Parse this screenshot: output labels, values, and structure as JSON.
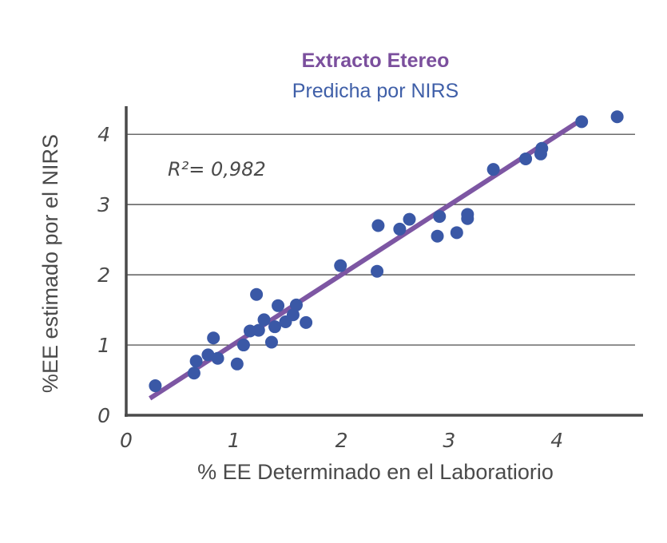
{
  "chart_data": {
    "type": "scatter",
    "title": "Extracto Etereo",
    "subtitle": "Predicha por NIRS",
    "xlabel": "% EE Determinado en el Laboratiorio",
    "ylabel": "%EE estimado por el NIRS",
    "annotation": "R²= 0,982",
    "xlim": [
      0,
      4.8
    ],
    "ylim": [
      0,
      4.4
    ],
    "xticks": [
      "0",
      "1",
      "2",
      "3",
      "4"
    ],
    "yticks": [
      "0",
      "1",
      "2",
      "3",
      "4"
    ],
    "grid": "horizontal",
    "colors": {
      "title": "#7b4f9d",
      "subtitle": "#3f5fa8",
      "points": "#3a58a6",
      "trendline": "#7d56a3",
      "axis": "#4a4a4a",
      "grid": "#3a3a3a"
    },
    "points": [
      {
        "x": 0.27,
        "y": 0.42
      },
      {
        "x": 0.63,
        "y": 0.6
      },
      {
        "x": 0.65,
        "y": 0.77
      },
      {
        "x": 0.76,
        "y": 0.86
      },
      {
        "x": 0.81,
        "y": 1.1
      },
      {
        "x": 0.85,
        "y": 0.81
      },
      {
        "x": 1.03,
        "y": 0.73
      },
      {
        "x": 1.09,
        "y": 1.0
      },
      {
        "x": 1.15,
        "y": 1.2
      },
      {
        "x": 1.21,
        "y": 1.72
      },
      {
        "x": 1.23,
        "y": 1.21
      },
      {
        "x": 1.28,
        "y": 1.36
      },
      {
        "x": 1.35,
        "y": 1.04
      },
      {
        "x": 1.38,
        "y": 1.26
      },
      {
        "x": 1.41,
        "y": 1.56
      },
      {
        "x": 1.48,
        "y": 1.33
      },
      {
        "x": 1.55,
        "y": 1.43
      },
      {
        "x": 1.58,
        "y": 1.57
      },
      {
        "x": 1.67,
        "y": 1.32
      },
      {
        "x": 1.99,
        "y": 2.13
      },
      {
        "x": 2.33,
        "y": 2.05
      },
      {
        "x": 2.34,
        "y": 2.7
      },
      {
        "x": 2.54,
        "y": 2.65
      },
      {
        "x": 2.63,
        "y": 2.79
      },
      {
        "x": 2.89,
        "y": 2.55
      },
      {
        "x": 2.91,
        "y": 2.83
      },
      {
        "x": 3.07,
        "y": 2.6
      },
      {
        "x": 3.17,
        "y": 2.8
      },
      {
        "x": 3.17,
        "y": 2.86
      },
      {
        "x": 3.41,
        "y": 3.5
      },
      {
        "x": 3.71,
        "y": 3.65
      },
      {
        "x": 3.85,
        "y": 3.72
      },
      {
        "x": 3.86,
        "y": 3.8
      },
      {
        "x": 4.23,
        "y": 4.18
      },
      {
        "x": 4.56,
        "y": 4.25
      }
    ],
    "trendline": [
      {
        "x": 0.22,
        "y": 0.24
      },
      {
        "x": 4.18,
        "y": 4.16
      }
    ]
  }
}
